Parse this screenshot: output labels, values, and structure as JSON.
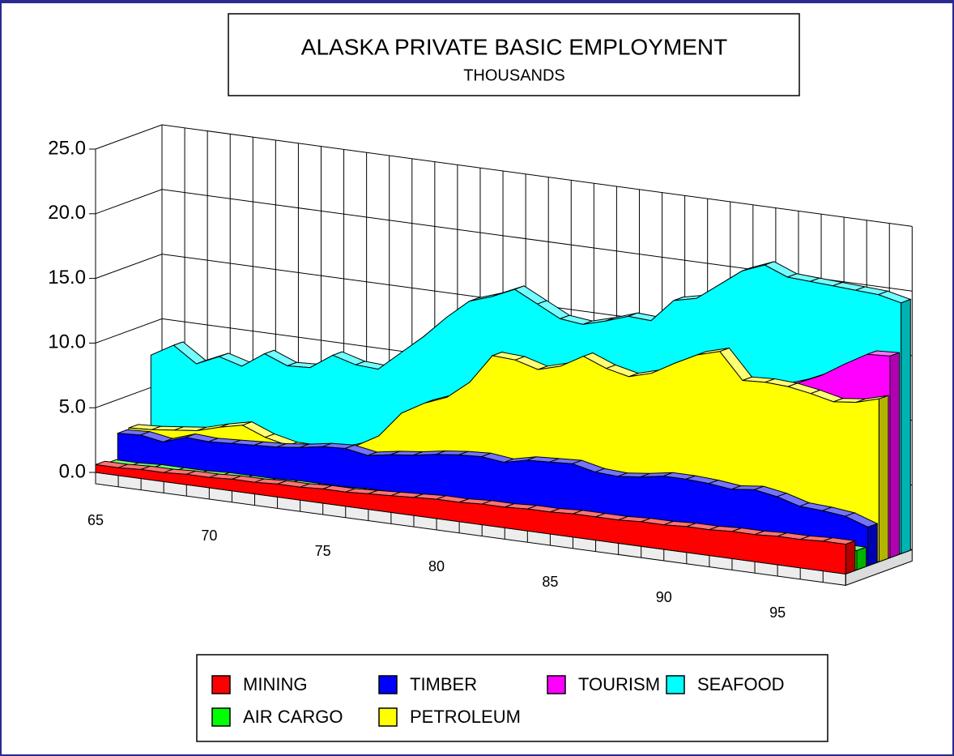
{
  "chart_data": {
    "type": "area3d",
    "title": "ALASKA PRIVATE BASIC EMPLOYMENT",
    "subtitle": "THOUSANDS",
    "categories": [
      "65",
      null,
      null,
      null,
      null,
      "70",
      null,
      null,
      null,
      null,
      "75",
      null,
      null,
      null,
      null,
      "80",
      null,
      null,
      null,
      null,
      "85",
      null,
      null,
      null,
      null,
      "90",
      null,
      null,
      null,
      null,
      "95",
      null,
      null,
      null
    ],
    "ylim": [
      0,
      25
    ],
    "yticks": [
      {
        "value": 0,
        "label": "0.0"
      },
      {
        "value": 5,
        "label": "5.0"
      },
      {
        "value": 10,
        "label": "10.0"
      },
      {
        "value": 15,
        "label": "15.0"
      },
      {
        "value": 20,
        "label": "20.0"
      },
      {
        "value": 25,
        "label": "25.0"
      }
    ],
    "grid": true,
    "series": [
      {
        "name": "MINING",
        "color": "#ff0000",
        "values": [
          0.6,
          0.6,
          0.7,
          0.7,
          0.8,
          0.8,
          0.9,
          0.9,
          1.0,
          1.0,
          1.1,
          1.1,
          1.2,
          1.3,
          1.4,
          1.5,
          1.5,
          1.6,
          1.6,
          1.7,
          1.7,
          1.8,
          1.8,
          1.8,
          1.9,
          1.9,
          2.0,
          2.0,
          2.1,
          2.1,
          2.2,
          2.2,
          2.3,
          2.3
        ]
      },
      {
        "name": "AIR CARGO",
        "color": "#00ff00",
        "values": [
          0.4,
          0.4,
          0.5,
          0.5,
          0.5,
          0.6,
          0.6,
          0.6,
          0.7,
          0.7,
          0.7,
          0.8,
          0.8,
          0.8,
          0.9,
          0.9,
          0.9,
          1.0,
          1.0,
          1.0,
          1.0,
          1.1,
          1.1,
          1.1,
          1.2,
          1.2,
          1.2,
          1.3,
          1.3,
          1.4,
          1.4,
          1.4,
          1.5,
          1.5
        ]
      },
      {
        "name": "TIMBER",
        "color": "#0000ff",
        "values": [
          2.4,
          2.5,
          2.2,
          2.8,
          2.7,
          2.8,
          2.9,
          3.0,
          3.2,
          3.5,
          3.6,
          3.3,
          3.6,
          3.8,
          4.1,
          4.3,
          4.4,
          4.2,
          4.6,
          4.7,
          4.8,
          4.4,
          4.3,
          4.5,
          4.8,
          4.8,
          4.7,
          4.5,
          4.7,
          4.4,
          3.9,
          3.8,
          3.6,
          3.0
        ]
      },
      {
        "name": "PETROLEUM",
        "color": "#ffff00",
        "values": [
          2.5,
          2.6,
          2.8,
          3.0,
          3.5,
          3.9,
          3.2,
          2.8,
          2.8,
          2.9,
          3.5,
          4.5,
          6.5,
          7.5,
          8.2,
          9.6,
          11.9,
          11.8,
          11.3,
          11.8,
          12.8,
          12.1,
          11.7,
          12.2,
          13.2,
          14.1,
          14.6,
          12.6,
          12.7,
          12.6,
          12.3,
          11.9,
          12.1,
          12.6
        ]
      },
      {
        "name": "TOURISM",
        "color": "#ff00ff",
        "values": [
          null,
          null,
          null,
          null,
          null,
          null,
          null,
          null,
          null,
          null,
          null,
          null,
          null,
          null,
          null,
          null,
          null,
          null,
          null,
          null,
          null,
          null,
          null,
          null,
          null,
          null,
          null,
          11.7,
          12.0,
          12.6,
          13.4,
          14.5,
          15.5,
          15.6
        ]
      },
      {
        "name": "SEAFOOD",
        "color": "#00ffff",
        "values": [
          7.5,
          8.5,
          7.3,
          8.1,
          7.6,
          8.8,
          8.1,
          8.2,
          9.4,
          8.9,
          8.8,
          10.3,
          11.8,
          13.5,
          15.0,
          15.6,
          16.4,
          15.5,
          14.6,
          14.4,
          14.9,
          15.5,
          15.4,
          17.2,
          17.6,
          18.9,
          20.2,
          20.9,
          20.2,
          20.1,
          20.0,
          19.9,
          19.8,
          19.4
        ]
      }
    ]
  }
}
